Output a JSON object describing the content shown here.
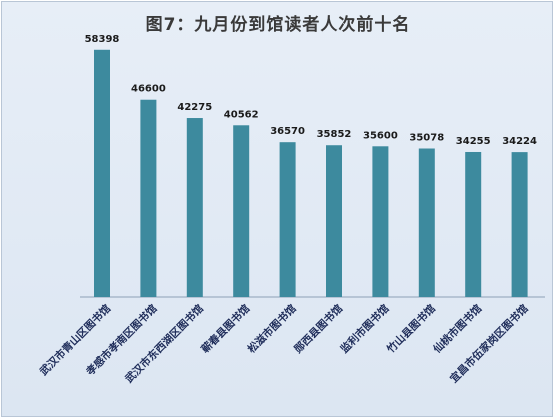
{
  "colors": {
    "bar": "#3d8a9e",
    "axis": "#8da0b6"
  },
  "chart_data": {
    "type": "bar",
    "title": "图7：九月份到馆读者人次前十名",
    "xlabel": "",
    "ylabel": "",
    "ylim": [
      0,
      60000
    ],
    "grid": false,
    "categories": [
      "武汉市青山区图书馆",
      "孝感市孝南区图书馆",
      "武汉市东西湖区图书馆",
      "蕲春县图书馆",
      "松滋市图书馆",
      "郧西县图书馆",
      "监利市图书馆",
      "竹山县图书馆",
      "仙桃市图书馆",
      "宜昌市伍家岗区图书馆"
    ],
    "values": [
      58398,
      46600,
      42275,
      40562,
      36570,
      35852,
      35600,
      35078,
      34255,
      34224
    ]
  }
}
